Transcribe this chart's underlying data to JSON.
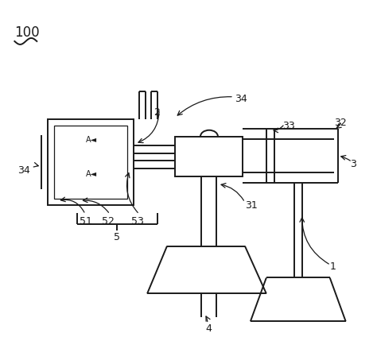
{
  "bg_color": "#ffffff",
  "line_color": "#1a1a1a",
  "lw": 1.4,
  "lw_thin": 0.9,
  "label_fs": 9,
  "title_fs": 11
}
